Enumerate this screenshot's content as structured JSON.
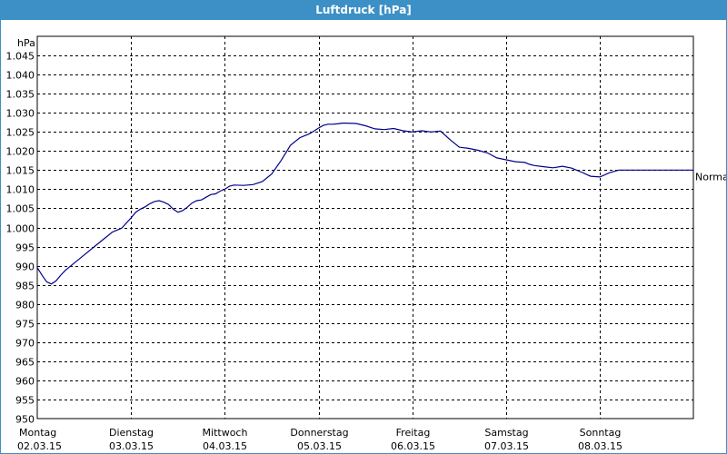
{
  "title": "Luftdruck [hPa]",
  "chart_data": {
    "type": "line",
    "title": "Luftdruck [hPa]",
    "ylabel": "hPa",
    "ylim": [
      950,
      1050
    ],
    "yticks": [
      "950",
      "955",
      "960",
      "965",
      "970",
      "975",
      "980",
      "985",
      "990",
      "995",
      "1.000",
      "1.005",
      "1.010",
      "1.015",
      "1.020",
      "1.025",
      "1.030",
      "1.035",
      "1.040",
      "1.045"
    ],
    "ytick_values": [
      950,
      955,
      960,
      965,
      970,
      975,
      980,
      985,
      990,
      995,
      1000,
      1005,
      1010,
      1015,
      1020,
      1025,
      1030,
      1035,
      1040,
      1045
    ],
    "xlim": [
      0,
      7
    ],
    "xticks": [
      {
        "day": "Montag",
        "date": "02.03.15"
      },
      {
        "day": "Dienstag",
        "date": "03.03.15"
      },
      {
        "day": "Mittwoch",
        "date": "04.03.15"
      },
      {
        "day": "Donnerstag",
        "date": "05.03.15"
      },
      {
        "day": "Freitag",
        "date": "06.03.15"
      },
      {
        "day": "Samstag",
        "date": "07.03.15"
      },
      {
        "day": "Sonntag",
        "date": "08.03.15"
      }
    ],
    "reference_label": "Normal",
    "reference_value": 1013.25,
    "grid": true,
    "series": [
      {
        "color": "#00008b",
        "x": [
          0,
          0.05,
          0.1,
          0.15,
          0.2,
          0.25,
          0.3,
          0.35,
          0.4,
          0.5,
          0.6,
          0.7,
          0.8,
          0.9,
          1.0,
          1.05,
          1.1,
          1.15,
          1.2,
          1.25,
          1.3,
          1.35,
          1.4,
          1.45,
          1.5,
          1.55,
          1.6,
          1.65,
          1.7,
          1.75,
          1.8,
          1.85,
          1.9,
          1.95,
          2.0,
          2.05,
          2.1,
          2.2,
          2.3,
          2.4,
          2.5,
          2.6,
          2.7,
          2.8,
          2.9,
          2.95,
          3.0,
          3.05,
          3.1,
          3.15,
          3.2,
          3.25,
          3.3,
          3.4,
          3.5,
          3.6,
          3.7,
          3.8,
          3.9,
          4.0,
          4.1,
          4.2,
          4.3,
          4.4,
          4.5,
          4.6,
          4.7,
          4.8,
          4.9,
          5.0,
          5.1,
          5.2,
          5.25,
          5.3,
          5.4,
          5.5,
          5.6,
          5.7,
          5.8,
          5.9,
          6.0,
          6.1,
          6.2,
          6.3,
          6.4,
          6.5,
          6.6,
          6.7,
          6.8,
          6.9,
          7.0
        ],
        "values": [
          989.5,
          987.5,
          985.8,
          985.2,
          986.0,
          987.5,
          988.8,
          989.8,
          990.8,
          992.8,
          994.8,
          996.8,
          998.8,
          999.8,
          1002.5,
          1004.0,
          1004.8,
          1005.4,
          1006.2,
          1006.8,
          1007.0,
          1006.6,
          1006.0,
          1004.8,
          1004.0,
          1004.4,
          1005.3,
          1006.4,
          1007.0,
          1007.2,
          1007.9,
          1008.6,
          1008.8,
          1009.5,
          1010.0,
          1010.8,
          1011.1,
          1011.0,
          1011.2,
          1012.0,
          1014.0,
          1017.5,
          1021.5,
          1023.5,
          1024.5,
          1025.2,
          1026.0,
          1026.7,
          1027.0,
          1027.0,
          1027.1,
          1027.3,
          1027.3,
          1027.2,
          1026.6,
          1025.8,
          1025.6,
          1025.9,
          1025.3,
          1025.0,
          1025.3,
          1025.0,
          1025.2,
          1023.0,
          1021.0,
          1020.7,
          1020.2,
          1019.5,
          1018.2,
          1017.7,
          1017.2,
          1017.0,
          1016.5,
          1016.2,
          1015.9,
          1015.6,
          1016.0,
          1015.5,
          1014.5,
          1013.4,
          1013.2,
          1014.3,
          1015.0,
          1015.0,
          1015.0,
          1015.0,
          1015.0,
          1015.0,
          1015.0,
          1015.0,
          1015.0
        ]
      }
    ]
  }
}
